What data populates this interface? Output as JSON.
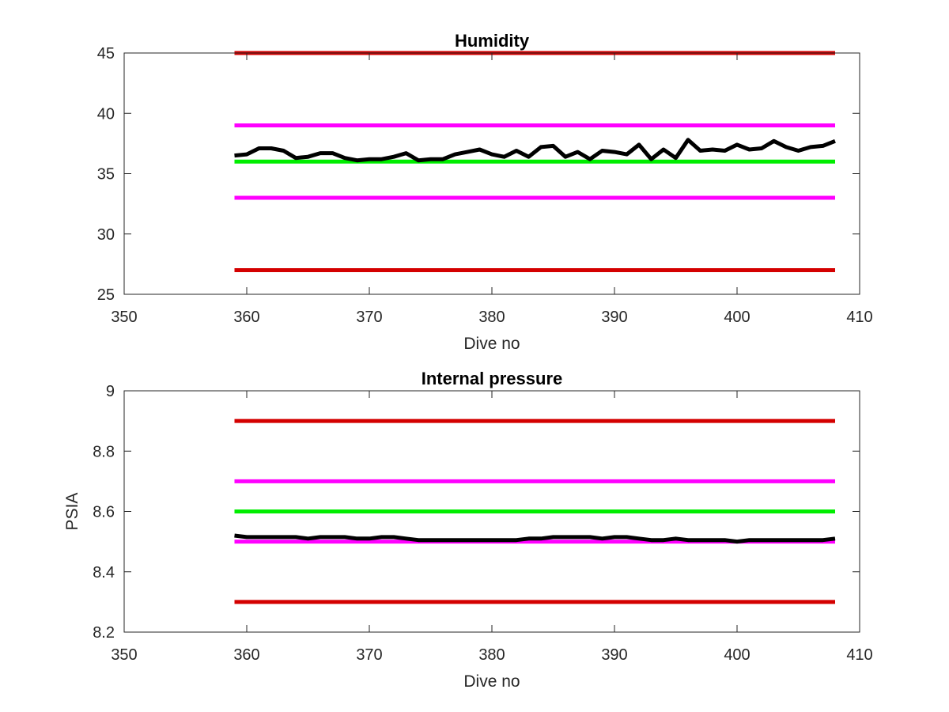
{
  "chart_data": [
    {
      "type": "line",
      "title": "Humidity",
      "xlabel": "Dive no",
      "ylabel": "",
      "xlim": [
        350,
        410
      ],
      "ylim": [
        25,
        45
      ],
      "xticks": [
        350,
        360,
        370,
        380,
        390,
        400,
        410
      ],
      "yticks": [
        25,
        30,
        35,
        40,
        45
      ],
      "grid": false,
      "series": [
        {
          "color": "#d40000",
          "style": "threshold",
          "x": [
            359,
            408
          ],
          "values": [
            45,
            45
          ]
        },
        {
          "color": "#ff00ff",
          "style": "threshold",
          "x": [
            359,
            408
          ],
          "values": [
            39,
            39
          ]
        },
        {
          "color": "#00ee00",
          "style": "threshold",
          "x": [
            359,
            408
          ],
          "values": [
            36,
            36
          ]
        },
        {
          "color": "#ff00ff",
          "style": "threshold",
          "x": [
            359,
            408
          ],
          "values": [
            33,
            33
          ]
        },
        {
          "color": "#d40000",
          "style": "threshold",
          "x": [
            359,
            408
          ],
          "values": [
            27,
            27
          ]
        },
        {
          "color": "#000000",
          "style": "measurement",
          "x": [
            359,
            360,
            361,
            362,
            363,
            364,
            365,
            366,
            367,
            368,
            369,
            370,
            371,
            372,
            373,
            374,
            375,
            376,
            377,
            378,
            379,
            380,
            381,
            382,
            383,
            384,
            385,
            386,
            387,
            388,
            389,
            390,
            391,
            392,
            393,
            394,
            395,
            396,
            397,
            398,
            399,
            400,
            401,
            402,
            403,
            404,
            405,
            406,
            407,
            408
          ],
          "values": [
            36.5,
            36.6,
            37.1,
            37.1,
            36.9,
            36.3,
            36.4,
            36.7,
            36.7,
            36.3,
            36.1,
            36.2,
            36.2,
            36.4,
            36.7,
            36.1,
            36.2,
            36.2,
            36.6,
            36.8,
            37.0,
            36.6,
            36.4,
            36.9,
            36.4,
            37.2,
            37.3,
            36.4,
            36.8,
            36.2,
            36.9,
            36.8,
            36.6,
            37.4,
            36.2,
            37.0,
            36.3,
            37.8,
            36.9,
            37.0,
            36.9,
            37.4,
            37.0,
            37.1,
            37.7,
            37.2,
            36.9,
            37.2,
            37.3,
            37.7
          ]
        }
      ]
    },
    {
      "type": "line",
      "title": "Internal pressure",
      "xlabel": "Dive no",
      "ylabel": "PSIA",
      "xlim": [
        350,
        410
      ],
      "ylim": [
        8.2,
        9
      ],
      "xticks": [
        350,
        360,
        370,
        380,
        390,
        400,
        410
      ],
      "yticks": [
        8.2,
        8.4,
        8.6,
        8.8,
        9
      ],
      "grid": false,
      "series": [
        {
          "color": "#d40000",
          "style": "threshold",
          "x": [
            359,
            408
          ],
          "values": [
            8.9,
            8.9
          ]
        },
        {
          "color": "#ff00ff",
          "style": "threshold",
          "x": [
            359,
            408
          ],
          "values": [
            8.7,
            8.7
          ]
        },
        {
          "color": "#00ee00",
          "style": "threshold",
          "x": [
            359,
            408
          ],
          "values": [
            8.6,
            8.6
          ]
        },
        {
          "color": "#ff00ff",
          "style": "threshold",
          "x": [
            359,
            408
          ],
          "values": [
            8.5,
            8.5
          ]
        },
        {
          "color": "#d40000",
          "style": "threshold",
          "x": [
            359,
            408
          ],
          "values": [
            8.3,
            8.3
          ]
        },
        {
          "color": "#000000",
          "style": "measurement",
          "x": [
            359,
            360,
            361,
            362,
            363,
            364,
            365,
            366,
            367,
            368,
            369,
            370,
            371,
            372,
            373,
            374,
            375,
            376,
            377,
            378,
            379,
            380,
            381,
            382,
            383,
            384,
            385,
            386,
            387,
            388,
            389,
            390,
            391,
            392,
            393,
            394,
            395,
            396,
            397,
            398,
            399,
            400,
            401,
            402,
            403,
            404,
            405,
            406,
            407,
            408
          ],
          "values": [
            8.52,
            8.515,
            8.515,
            8.515,
            8.515,
            8.515,
            8.51,
            8.515,
            8.515,
            8.515,
            8.51,
            8.51,
            8.515,
            8.515,
            8.51,
            8.505,
            8.505,
            8.505,
            8.505,
            8.505,
            8.505,
            8.505,
            8.505,
            8.505,
            8.51,
            8.51,
            8.515,
            8.515,
            8.515,
            8.515,
            8.51,
            8.515,
            8.515,
            8.51,
            8.505,
            8.505,
            8.51,
            8.505,
            8.505,
            8.505,
            8.505,
            8.5,
            8.505,
            8.505,
            8.505,
            8.505,
            8.505,
            8.505,
            8.505,
            8.51
          ]
        }
      ]
    }
  ]
}
